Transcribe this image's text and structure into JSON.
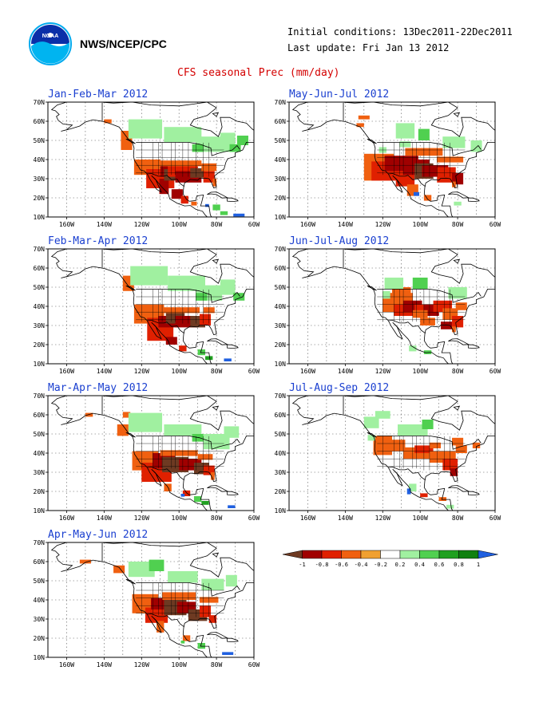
{
  "header": {
    "agency": "NWS/NCEP/CPC",
    "initial_conditions": "Initial conditions: 13Dec2011-22Dec2011",
    "last_update": "Last update: Fri Jan 13 2012",
    "main_title": "CFS seasonal Prec (mm/day)"
  },
  "logo": {
    "icon": "noaa-logo-icon",
    "lettering": "NOAA"
  },
  "axes": {
    "lat_labels": [
      "70N",
      "60N",
      "50N",
      "40N",
      "30N",
      "20N",
      "10N"
    ],
    "lon_labels": [
      "160W",
      "140W",
      "120W",
      "100W",
      "80W",
      "60W"
    ]
  },
  "panels": [
    {
      "title": "Jan-Feb-Mar 2012",
      "pattern": "jfm"
    },
    {
      "title": "May-Jun-Jul 2012",
      "pattern": "mjj"
    },
    {
      "title": "Feb-Mar-Apr 2012",
      "pattern": "fma"
    },
    {
      "title": "Jun-Jul-Aug 2012",
      "pattern": "jja"
    },
    {
      "title": "Mar-Apr-May 2012",
      "pattern": "mam"
    },
    {
      "title": "Jul-Aug-Sep 2012",
      "pattern": "jas"
    },
    {
      "title": "Apr-May-Jun 2012",
      "pattern": "amj"
    }
  ],
  "legend": {
    "labels": [
      "-1",
      "-0.8",
      "-0.6",
      "-0.4",
      "-0.2",
      "0.2",
      "0.4",
      "0.6",
      "0.8",
      "1"
    ],
    "colors": [
      "#6e3a22",
      "#a00000",
      "#e02000",
      "#f06010",
      "#f0a030",
      "#ffffff",
      "#a0f0a0",
      "#50d050",
      "#20a020",
      "#108010",
      "#2060e0"
    ]
  }
}
